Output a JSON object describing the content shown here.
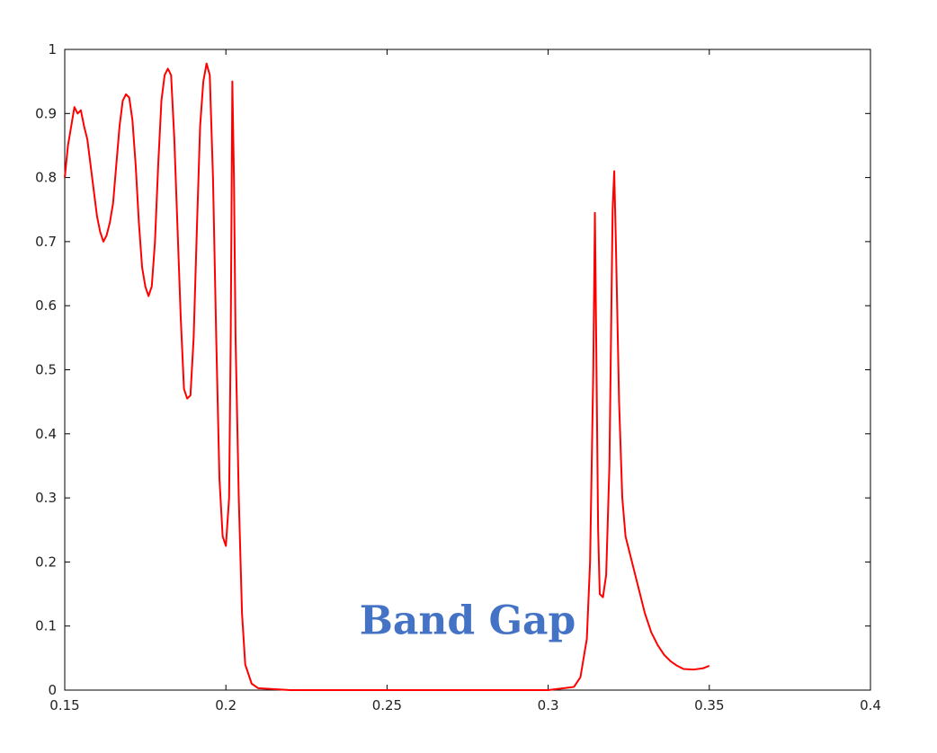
{
  "chart_data": {
    "type": "line",
    "title": "",
    "xlabel": "",
    "ylabel": "",
    "xlim": [
      0.15,
      0.4
    ],
    "ylim": [
      0,
      1
    ],
    "grid": false,
    "x_ticks": [
      "0.15",
      "0.2",
      "0.25",
      "0.3",
      "0.35",
      "0.4"
    ],
    "y_ticks": [
      "0",
      "0.1",
      "0.2",
      "0.3",
      "0.4",
      "0.5",
      "0.6",
      "0.7",
      "0.8",
      "0.9",
      "1"
    ],
    "line_color": "#ff0000",
    "annotation": {
      "text": "Band Gap",
      "x": 0.275,
      "y": 0.11,
      "color": "#4472c4"
    },
    "series": [
      {
        "x": [
          0.15,
          0.151,
          0.152,
          0.153,
          0.154,
          0.155,
          0.156,
          0.157,
          0.158,
          0.159,
          0.16,
          0.161,
          0.162,
          0.163,
          0.164,
          0.165,
          0.166,
          0.167,
          0.168,
          0.169,
          0.17,
          0.171,
          0.172,
          0.173,
          0.174,
          0.175,
          0.176,
          0.177,
          0.178,
          0.179,
          0.18,
          0.181,
          0.182,
          0.183,
          0.184,
          0.185,
          0.186,
          0.187,
          0.188,
          0.189,
          0.19,
          0.191,
          0.192,
          0.193,
          0.194,
          0.195,
          0.196,
          0.197,
          0.198,
          0.199,
          0.2,
          0.201,
          0.2015,
          0.202,
          0.2025,
          0.203,
          0.204,
          0.205,
          0.206,
          0.208,
          0.21,
          0.22,
          0.25,
          0.28,
          0.3,
          0.308,
          0.31,
          0.312,
          0.313,
          0.314,
          0.3145,
          0.315,
          0.3155,
          0.316,
          0.317,
          0.318,
          0.319,
          0.3195,
          0.32,
          0.3205,
          0.321,
          0.322,
          0.323,
          0.324,
          0.326,
          0.328,
          0.33,
          0.332,
          0.334,
          0.336,
          0.338,
          0.34,
          0.342,
          0.345,
          0.348,
          0.35
        ],
        "y": [
          0.8,
          0.85,
          0.88,
          0.91,
          0.9,
          0.905,
          0.88,
          0.86,
          0.82,
          0.78,
          0.74,
          0.715,
          0.7,
          0.71,
          0.73,
          0.76,
          0.82,
          0.88,
          0.92,
          0.93,
          0.925,
          0.89,
          0.82,
          0.73,
          0.66,
          0.63,
          0.615,
          0.63,
          0.7,
          0.82,
          0.92,
          0.96,
          0.97,
          0.96,
          0.86,
          0.72,
          0.58,
          0.47,
          0.455,
          0.46,
          0.55,
          0.72,
          0.88,
          0.95,
          0.978,
          0.96,
          0.8,
          0.55,
          0.33,
          0.24,
          0.225,
          0.3,
          0.55,
          0.95,
          0.8,
          0.55,
          0.3,
          0.12,
          0.04,
          0.01,
          0.003,
          0.0,
          0.0,
          0.0,
          0.0,
          0.005,
          0.02,
          0.08,
          0.2,
          0.5,
          0.745,
          0.5,
          0.25,
          0.15,
          0.145,
          0.18,
          0.35,
          0.55,
          0.75,
          0.81,
          0.7,
          0.45,
          0.3,
          0.24,
          0.2,
          0.16,
          0.12,
          0.09,
          0.07,
          0.055,
          0.045,
          0.038,
          0.033,
          0.032,
          0.034,
          0.038
        ]
      }
    ]
  }
}
